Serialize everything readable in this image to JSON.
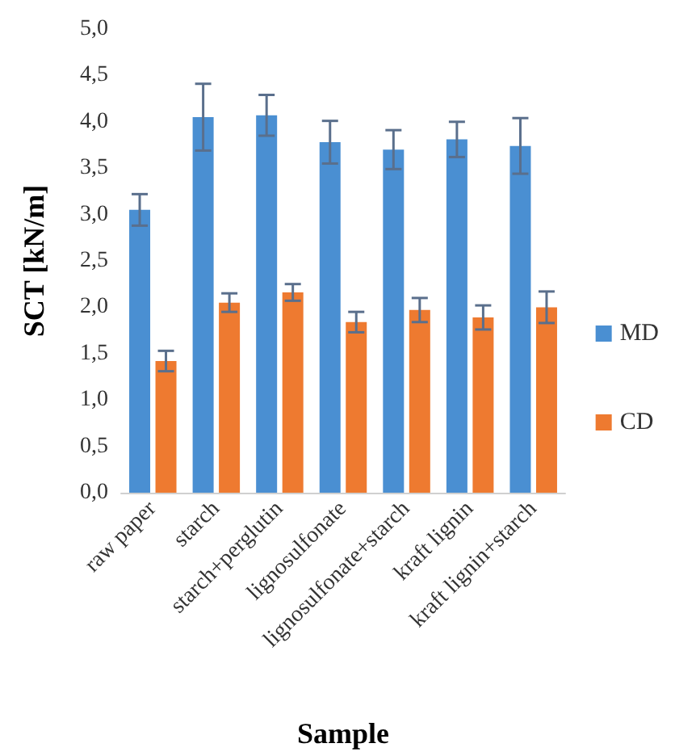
{
  "chart_data": {
    "type": "bar",
    "xlabel": "Sample",
    "ylabel": "SCT [kN/m]",
    "categories": [
      "raw paper",
      "starch",
      "starch+perglutin",
      "lignosulfonate",
      "lignosulfonate+starch",
      "kraft lignin",
      "kraft lignin+starch"
    ],
    "series": [
      {
        "name": "MD",
        "color": "#4a8fd2",
        "values": [
          3.05,
          4.05,
          4.07,
          3.78,
          3.7,
          3.81,
          3.74
        ],
        "errors": [
          0.17,
          0.36,
          0.22,
          0.23,
          0.21,
          0.19,
          0.3
        ]
      },
      {
        "name": "CD",
        "color": "#ee7a30",
        "values": [
          1.42,
          2.05,
          2.16,
          1.84,
          1.97,
          1.89,
          2.0
        ],
        "errors": [
          0.11,
          0.1,
          0.09,
          0.11,
          0.13,
          0.13,
          0.17
        ]
      }
    ],
    "ylim": [
      0,
      5
    ],
    "yticks": [
      {
        "value": 0,
        "label": "0,0"
      },
      {
        "value": 0.5,
        "label": "0,5"
      },
      {
        "value": 1,
        "label": "1,0"
      },
      {
        "value": 1.5,
        "label": "1,5"
      },
      {
        "value": 2,
        "label": "2,0"
      },
      {
        "value": 2.5,
        "label": "2,5"
      },
      {
        "value": 3,
        "label": "3,0"
      },
      {
        "value": 3.5,
        "label": "3,5"
      },
      {
        "value": 4,
        "label": "4,0"
      },
      {
        "value": 4.5,
        "label": "4,5"
      },
      {
        "value": 5,
        "label": "5,0"
      }
    ],
    "grid": false,
    "legend": "right"
  }
}
